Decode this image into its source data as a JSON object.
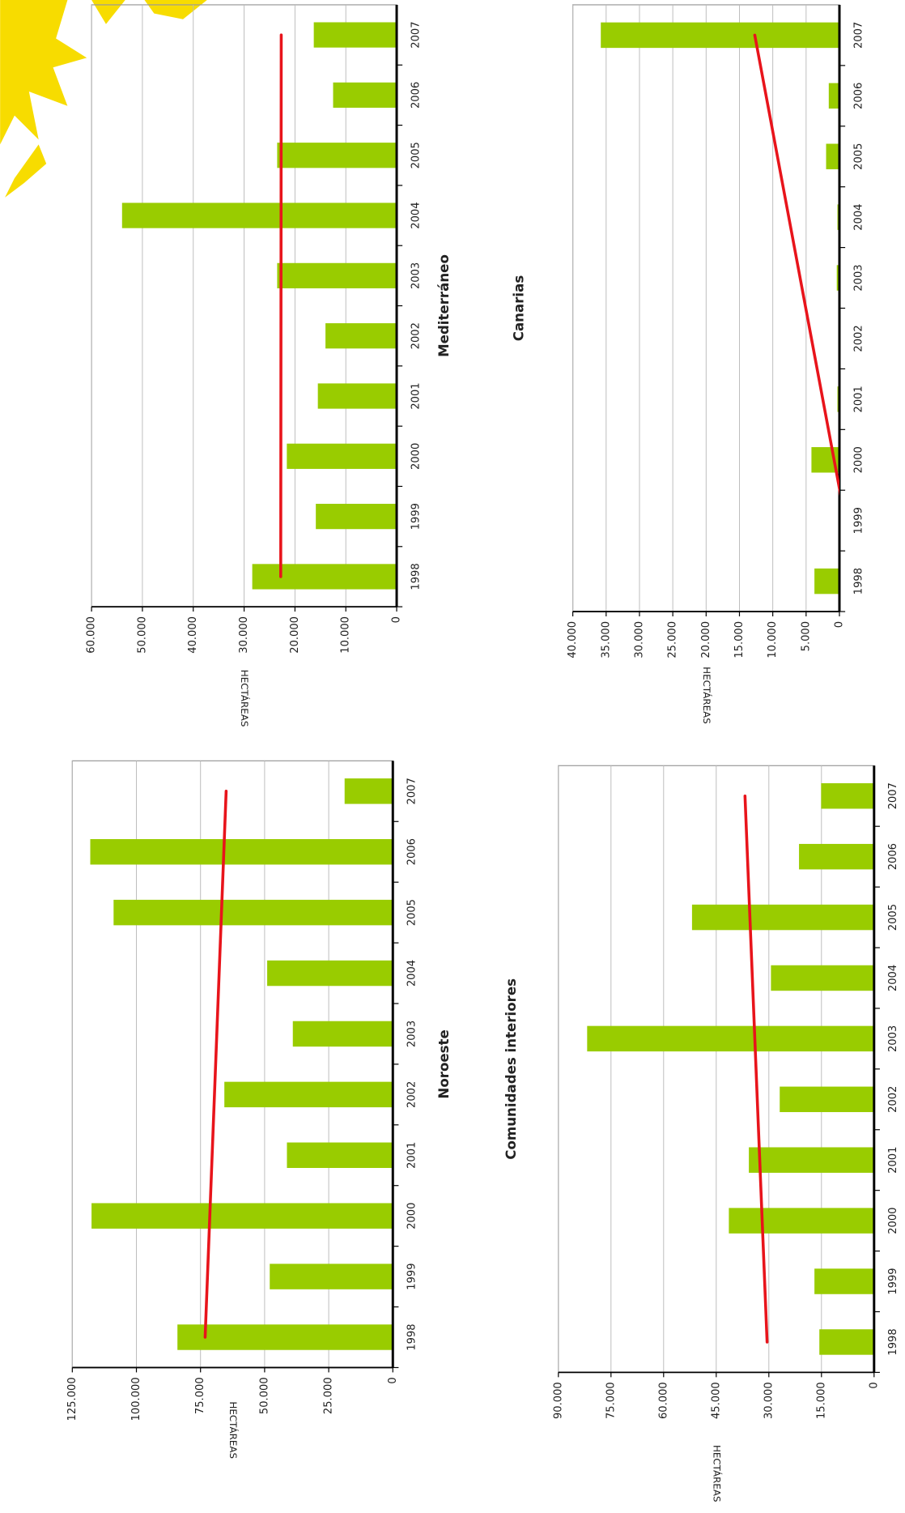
{
  "chart_data": [
    {
      "type": "bar",
      "title": "Noroeste",
      "y_label": "HECTÁREAS",
      "categories": [
        "1998",
        "1999",
        "2000",
        "2001",
        "2002",
        "2003",
        "2004",
        "2005",
        "2006",
        "2007"
      ],
      "values": [
        84000,
        48000,
        117500,
        41300,
        65700,
        39000,
        49000,
        108900,
        118000,
        18800
      ],
      "color": "#99cc00",
      "trend": [
        73200,
        65000
      ],
      "trend_color": "#e8141b",
      "ylim": [
        0,
        125000
      ],
      "yticks": [
        0,
        {
          "value": 25000,
          "label": "25.000"
        },
        {
          "value": 50000,
          "label": "50.000"
        },
        {
          "value": 75000,
          "label": "75.000"
        },
        {
          "value": 100000,
          "label": "100.000"
        },
        {
          "value": 125000,
          "label": "125.000"
        }
      ],
      "grid": true
    },
    {
      "type": "bar",
      "title": "Mediterráneo",
      "y_label": "HECTÁREAS",
      "categories": [
        "1998",
        "1999",
        "2000",
        "2001",
        "2002",
        "2003",
        "2004",
        "2005",
        "2006",
        "2007"
      ],
      "values": [
        28400,
        15900,
        21600,
        15500,
        14000,
        23500,
        54000,
        23500,
        12500,
        16300
      ],
      "color": "#99cc00",
      "trend": [
        22800,
        22700
      ],
      "trend_color": "#e8141b",
      "ylim": [
        0,
        60000
      ],
      "yticks": [
        0,
        {
          "value": 10000,
          "label": "10.000"
        },
        {
          "value": 20000,
          "label": "20.000"
        },
        {
          "value": 30000,
          "label": "30.000"
        },
        {
          "value": 40000,
          "label": "40.000"
        },
        {
          "value": 50000,
          "label": "50.000"
        },
        {
          "value": 60000,
          "label": "60.000"
        }
      ],
      "grid": true
    },
    {
      "type": "bar",
      "title": "Comunidades interiores",
      "y_label": "HECTÁREAS",
      "categories": [
        "1998",
        "1999",
        "2000",
        "2001",
        "2002",
        "2003",
        "2004",
        "2005",
        "2006",
        "2007"
      ],
      "values": [
        15600,
        17000,
        41400,
        35700,
        26900,
        81800,
        29400,
        51900,
        21400,
        15100
      ],
      "color": "#99cc00",
      "trend": [
        30500,
        36800
      ],
      "trend_color": "#e8141b",
      "ylim": [
        0,
        90000
      ],
      "yticks": [
        0,
        {
          "value": 15000,
          "label": "15.000"
        },
        {
          "value": 30000,
          "label": "30.000"
        },
        {
          "value": 45000,
          "label": "45.000"
        },
        {
          "value": 60000,
          "label": "60.000"
        },
        {
          "value": 75000,
          "label": "75.000"
        },
        {
          "value": 90000,
          "label": "90.000"
        }
      ],
      "grid": true
    },
    {
      "type": "bar",
      "title": "Canarias",
      "y_label": "HECTÁREAS",
      "categories": [
        "1998",
        "1999",
        "2000",
        "2001",
        "2002",
        "2003",
        "2004",
        "2005",
        "2006",
        "2007"
      ],
      "values": [
        3750,
        100,
        4200,
        300,
        100,
        400,
        300,
        2000,
        1600,
        35800
      ],
      "color": "#99cc00",
      "trend": [
        -2600,
        12700
      ],
      "trend_color": "#e8141b",
      "ylim": [
        0,
        40000
      ],
      "yticks": [
        0,
        {
          "value": 5000,
          "label": "5.000"
        },
        {
          "value": 10000,
          "label": "10.000"
        },
        {
          "value": 15000,
          "label": "15.000"
        },
        {
          "value": 20000,
          "label": "20.000"
        },
        {
          "value": 25000,
          "label": "25.000"
        },
        {
          "value": 30000,
          "label": "30.000"
        },
        {
          "value": 35000,
          "label": "35.000"
        },
        {
          "value": 40000,
          "label": "40.000"
        }
      ],
      "grid": true
    }
  ]
}
